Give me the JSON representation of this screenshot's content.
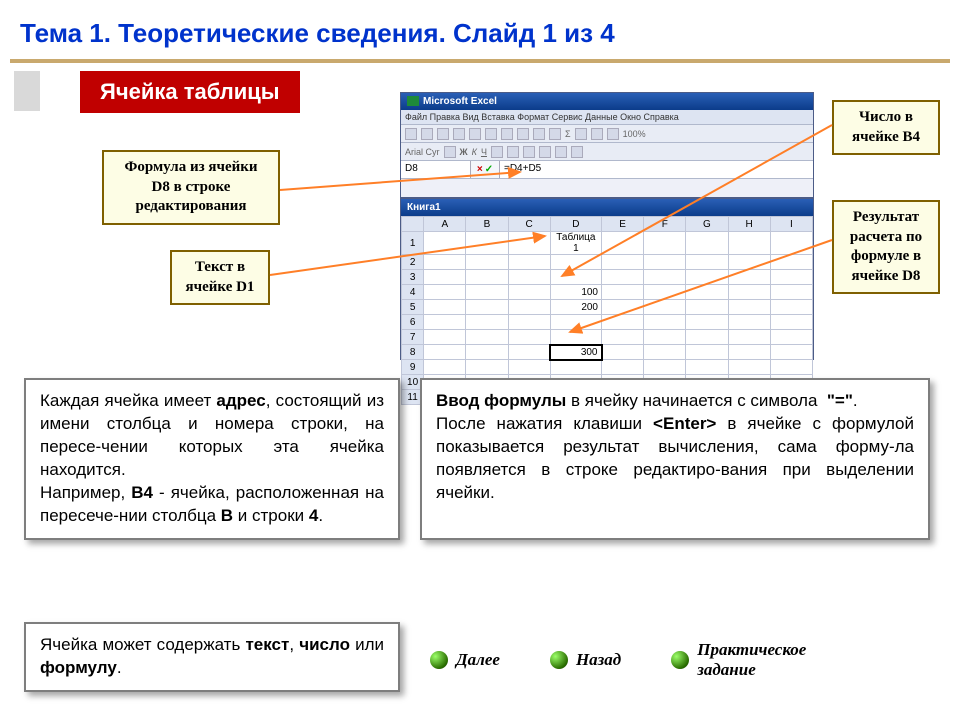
{
  "title": "Тема 1. Теоретические сведения. Слайд 1 из 4",
  "banner": "Ячейка таблицы",
  "callouts": {
    "formula_d8": "Формула из ячейки D8 в строке редактирования",
    "text_d1": "Текст в ячейке D1",
    "num_b4": "Число в ячейке B4",
    "result_d8": "Результат расчета по формуле в ячейке D8"
  },
  "excel": {
    "app_title": "Microsoft Excel",
    "menu": "Файл  Правка  Вид  Вставка  Формат  Сервис  Данные  Окно  Справка",
    "name_box": "D8",
    "formula": "=D4+D5",
    "book": "Книга1",
    "columns": [
      "A",
      "B",
      "C",
      "D",
      "E",
      "F",
      "G",
      "H",
      "I"
    ],
    "rows": [
      "1",
      "2",
      "3",
      "4",
      "5",
      "6",
      "7",
      "8",
      "9",
      "10",
      "11"
    ],
    "d1": "Таблица 1",
    "d4": "100",
    "d5": "200",
    "d8": "300"
  },
  "panel_left_html": "Каждая ячейка имеет <b>адрес</b>, состоящий из имени столбца и номера строки, на пересе-чении которых эта ячейка находится.<br>Например, <b>B4</b> - ячейка, расположенная на пересече-нии столбца <b>B</b> и строки <b>4</b>.",
  "panel_right_html": "<b>Ввод формулы</b> в ячейку начинается с символа&nbsp;&nbsp;<b>\"=\"</b>.<br>После нажатия клавиши <b>&lt;Enter&gt;</b> в ячейке с формулой показывается результат вычисления, сама форму-ла появляется в строке редактиро-вания при выделении ячейки.",
  "panel_small_html": "Ячейка может содержать <b>текст</b>, <b>число</b> или <b>формулу</b>.",
  "nav": {
    "next": "Далее",
    "back": "Назад",
    "task": "Практическое задание"
  },
  "colors": {
    "title": "#0033cc",
    "hr": "#c9a96e",
    "banner_bg": "#c00000",
    "callout_border": "#7f6000",
    "callout_bg": "#fdfde5",
    "arrow": "#ff7f27"
  }
}
